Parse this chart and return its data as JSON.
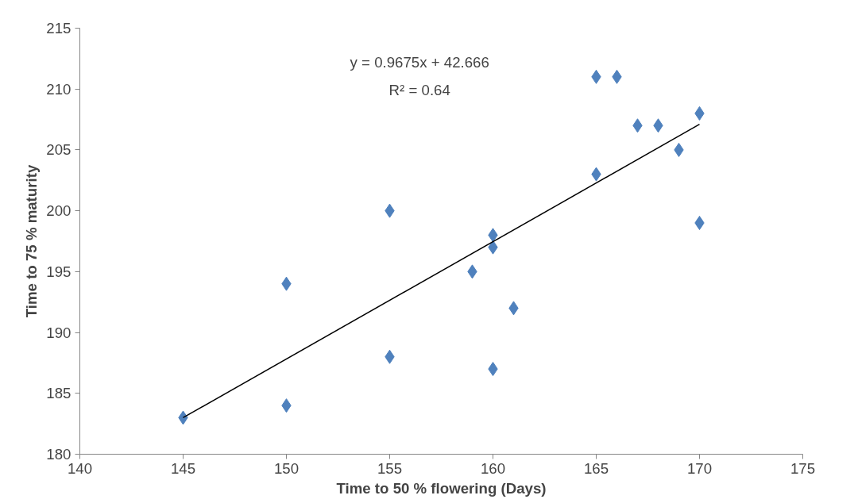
{
  "chart_data": {
    "type": "scatter",
    "xlabel": "Time to 50 % flowering (Days)",
    "ylabel": "Time to 75 % maturity",
    "annotations": [
      "y = 0.9675x + 42.666",
      "R² = 0.64"
    ],
    "series": [
      {
        "color": "#4f81bd",
        "marker": "diamond",
        "x": [
          145,
          150,
          150,
          155,
          155,
          159,
          160,
          160,
          160,
          161,
          165,
          165,
          166,
          167,
          168,
          169,
          170,
          170
        ],
        "values": [
          183,
          184,
          194,
          188,
          200,
          195,
          198,
          197,
          187,
          192,
          203,
          211,
          211,
          207,
          207,
          205,
          208,
          199
        ]
      },
      {
        "type": "line",
        "color": "#000000",
        "marker": "none",
        "line_style": "solid",
        "x": [
          145,
          170
        ],
        "values": [
          183.0,
          207.1
        ]
      }
    ],
    "xlim": [
      140,
      175
    ],
    "xticks": [
      140,
      145,
      150,
      155,
      160,
      165,
      170,
      175
    ],
    "ylim": [
      180,
      215
    ],
    "yticks": [
      180,
      185,
      190,
      195,
      200,
      205,
      210,
      215
    ],
    "grid": false
  }
}
